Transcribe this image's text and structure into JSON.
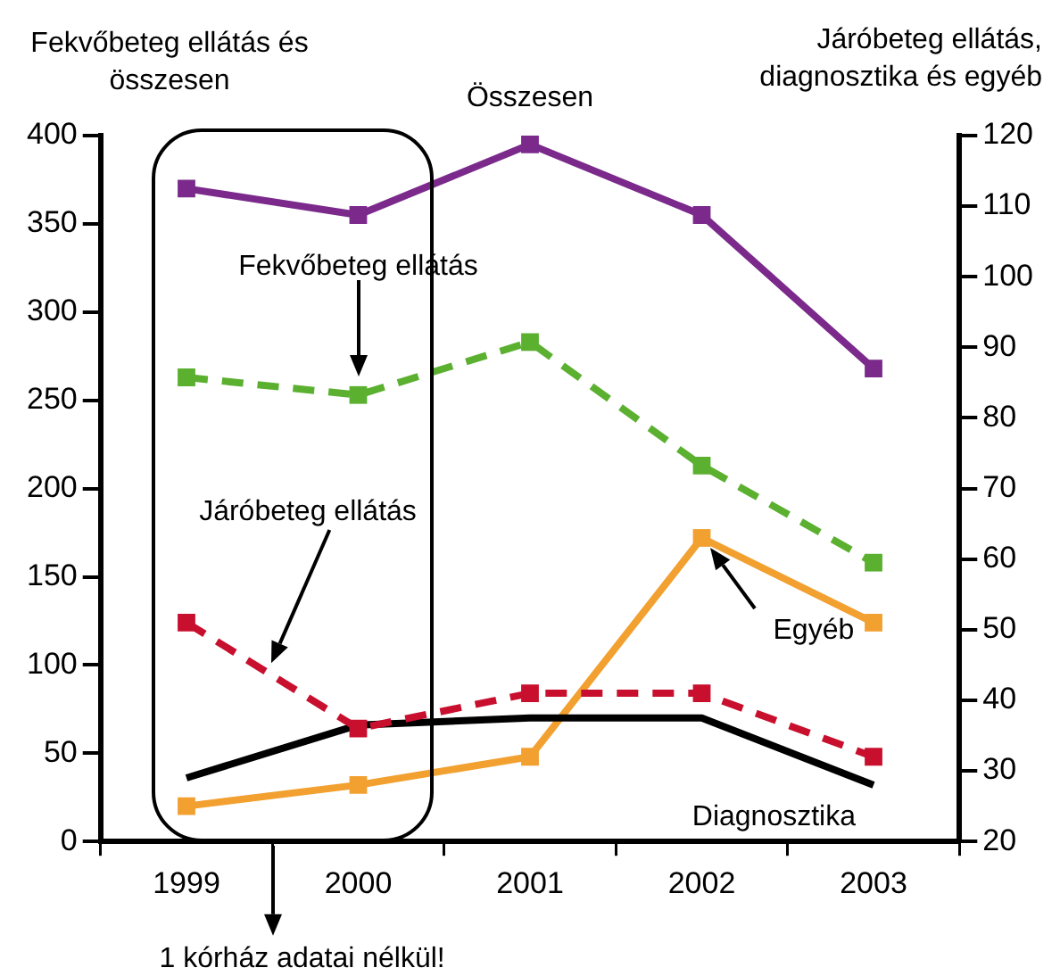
{
  "chart_data": {
    "type": "line",
    "ylabel": "Fekvőbeteg ellátás és összesen",
    "y2label": "Járóbeteg ellátás, diagnosztika és egyéb",
    "categories": [
      "1999",
      "2000",
      "2001",
      "2002",
      "2003"
    ],
    "series": [
      {
        "name": "Összesen",
        "color": "#7b2a8c",
        "values": [
          370,
          355,
          395,
          355,
          268
        ],
        "marker": "square",
        "line_style": "solid"
      },
      {
        "name": "Fekvőbeteg ellátás",
        "color": "#5bb030",
        "values": [
          263,
          253,
          283,
          213,
          158
        ],
        "marker": "square",
        "line_style": "dashed"
      },
      {
        "name": "Járóbeteg ellátás",
        "color": "#c8102e",
        "values": [
          51,
          36,
          41,
          41,
          32
        ],
        "axis": "y2",
        "marker": "square",
        "line_style": "dashed"
      },
      {
        "name": "Diagnosztika",
        "color": "#000000",
        "values": [
          29,
          36.5,
          37.5,
          37.5,
          28
        ],
        "axis": "y2",
        "marker": "none",
        "line_style": "solid"
      },
      {
        "name": "Egyéb",
        "color": "#f2a030",
        "values": [
          25,
          28,
          32,
          63,
          51
        ],
        "axis": "y2",
        "marker": "square",
        "line_style": "solid"
      }
    ],
    "ylim": [
      0,
      400
    ],
    "yticks": [
      0,
      50,
      100,
      150,
      200,
      250,
      300,
      350,
      400
    ],
    "y2lim": [
      20,
      120
    ],
    "y2ticks": [
      20,
      30,
      40,
      50,
      60,
      70,
      80,
      90,
      100,
      110,
      120
    ],
    "annotations": [
      "1 kórház adatai nélkül!"
    ],
    "grid": false,
    "legend": false
  }
}
